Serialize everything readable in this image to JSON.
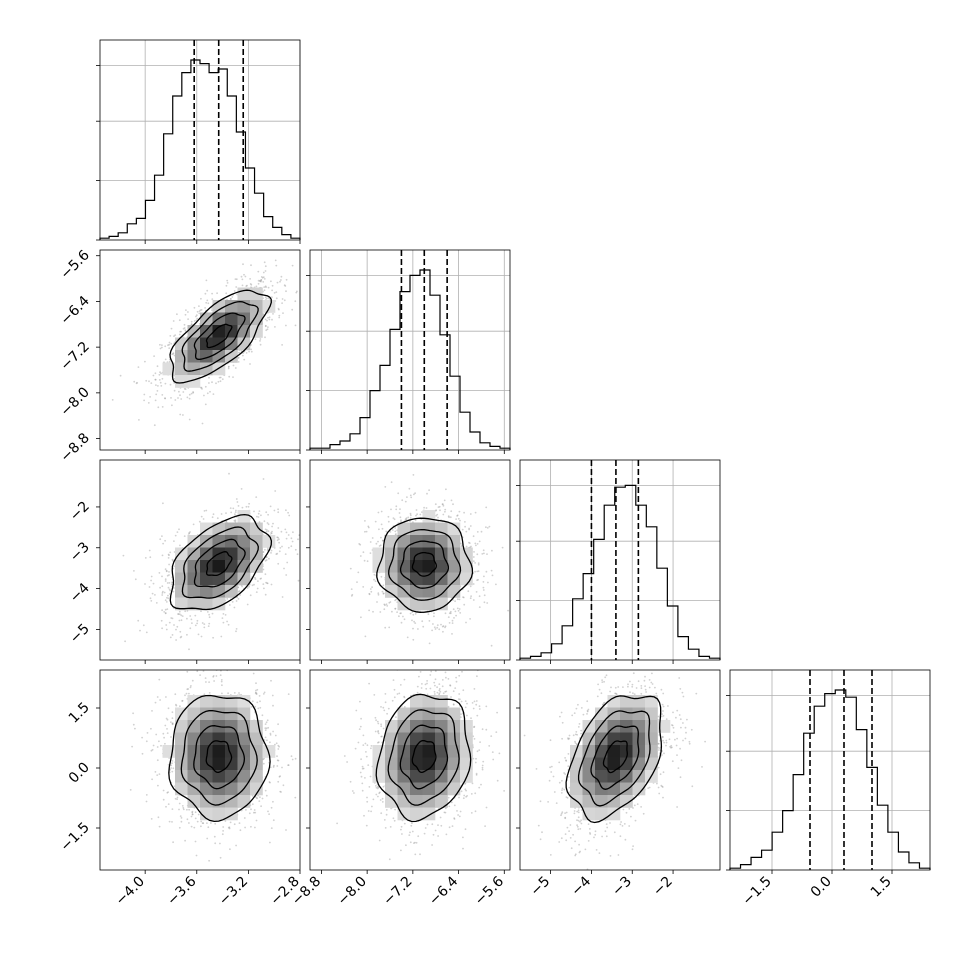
{
  "chart_data": {
    "type": "corner",
    "parameters": [
      {
        "median": -3.43,
        "q16": -3.62,
        "q84": -3.24,
        "range": [
          -4.35,
          -2.8
        ],
        "ticks": [
          -4.0,
          -3.6,
          -3.2,
          -2.8
        ],
        "tick_labels": [
          "−4.0",
          "−3.6",
          "−3.2",
          "−2.8"
        ],
        "hist_counts": [
          0.01,
          0.02,
          0.04,
          0.09,
          0.12,
          0.22,
          0.36,
          0.59,
          0.8,
          0.93,
          1.0,
          0.98,
          0.93,
          0.95,
          0.8,
          0.6,
          0.4,
          0.26,
          0.13,
          0.07,
          0.03,
          0.01
        ]
      },
      {
        "median": -7.0,
        "q16": -7.4,
        "q84": -6.6,
        "range": [
          -9.0,
          -5.5
        ],
        "ticks": [
          -8.8,
          -8.0,
          -7.2,
          -6.4,
          -5.6
        ],
        "tick_labels": [
          "−8.8",
          "−8.0",
          "−7.2",
          "−6.4",
          "−5.6"
        ],
        "hist_counts": [
          0.01,
          0.01,
          0.03,
          0.05,
          0.09,
          0.18,
          0.33,
          0.47,
          0.67,
          0.88,
          0.97,
          1.0,
          0.86,
          0.64,
          0.41,
          0.21,
          0.1,
          0.04,
          0.02,
          0.01
        ]
      },
      {
        "median": -3.4,
        "q16": -4.0,
        "q84": -2.85,
        "range": [
          -5.75,
          -0.85
        ],
        "ticks": [
          -5,
          -4,
          -3,
          -2
        ],
        "tick_labels": [
          "−5",
          "−4",
          "−3",
          "−2"
        ],
        "hist_counts": [
          0.01,
          0.02,
          0.04,
          0.09,
          0.19,
          0.34,
          0.48,
          0.67,
          0.86,
          0.96,
          0.97,
          0.86,
          0.74,
          0.51,
          0.3,
          0.13,
          0.06,
          0.02,
          0.01
        ]
      },
      {
        "median": 0.3,
        "q16": -0.55,
        "q84": 1.0,
        "range": [
          -2.55,
          2.45
        ],
        "ticks": [
          -1.5,
          0.0,
          1.5
        ],
        "tick_labels": [
          "−1.5",
          "0.0",
          "1.5"
        ],
        "hist_counts": [
          0.01,
          0.03,
          0.07,
          0.11,
          0.21,
          0.33,
          0.53,
          0.76,
          0.91,
          0.98,
          1.0,
          0.96,
          0.78,
          0.57,
          0.36,
          0.21,
          0.1,
          0.04,
          0.01
        ]
      }
    ],
    "correlations": [
      {
        "row": 1,
        "col": 0,
        "corr": 0.68
      },
      {
        "row": 2,
        "col": 0,
        "corr": 0.46
      },
      {
        "row": 2,
        "col": 1,
        "corr": 0.0
      },
      {
        "row": 3,
        "col": 0,
        "corr": 0.0
      },
      {
        "row": 3,
        "col": 1,
        "corr": 0.12
      },
      {
        "row": 3,
        "col": 2,
        "corr": 0.4
      }
    ],
    "quantile_lines": "dashed",
    "contour_levels_sigma": [
      0.5,
      1.0,
      1.5,
      2.0
    ],
    "grid": true
  }
}
